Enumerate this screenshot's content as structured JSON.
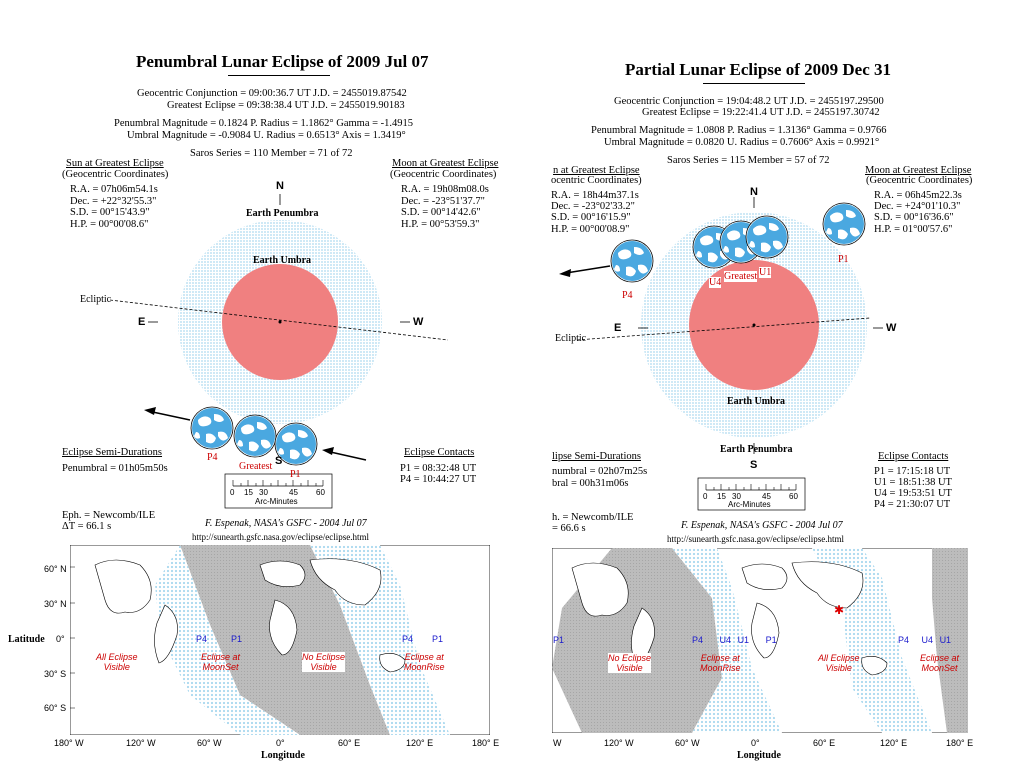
{
  "left": {
    "title": "Penumbral Lunar Eclipse of  2009 Jul 07",
    "conj_line": "Geocentric Conjunction =  09:00:36.7 UT        J.D. =  2455019.87542",
    "greatest_line": "Greatest Eclipse =  09:38:38.4 UT        J.D. =  2455019.90183",
    "mag_line1": "Penumbral Magnitude =  0.1824     P. Radius = 1.1862°       Gamma = -1.4915",
    "mag_line2": "Umbral Magnitude =  -0.9084     U. Radius = 0.6513°          Axis =  1.3419°",
    "saros": "Saros Series = 110          Member = 71 of 72",
    "sun_header": "Sun at Greatest Eclipse",
    "sun_sub": "(Geocentric Coordinates)",
    "sun_ra": "R.A. =  07h06m54.1s",
    "sun_dec": "Dec. = +22°32'55.3\"",
    "sun_sd": "S.D. = 00°15'43.9\"",
    "sun_hp": "H.P. = 00°00'08.6\"",
    "moon_header": "Moon at Greatest Eclipse",
    "moon_sub": "(Geocentric Coordinates)",
    "moon_ra": "R.A. =  19h08m08.0s",
    "moon_dec": "Dec. = -23°51'37.7\"",
    "moon_sd": "S.D. = 00°14'42.6\"",
    "moon_hp": "H.P. = 00°53'59.3\"",
    "n_label": "N",
    "s_label": "S",
    "e_label": "E",
    "w_label": "W",
    "penumbra_label": "Earth Penumbra",
    "umbra_label": "Earth Umbra",
    "ecliptic_label": "Ecliptic",
    "p4_label": "P4",
    "greatest_label": "Greatest",
    "p1_label": "P1",
    "semi_header": "Eclipse Semi-Durations",
    "semi_pen": "Penumbral = 01h05m50s",
    "contacts_header": "Eclipse Contacts",
    "contact_p1": "P1 = 08:32:48 UT",
    "contact_p4": "P4 = 10:44:27 UT",
    "scale_ticks": [
      "0",
      "15",
      "30",
      "45",
      "60"
    ],
    "scale_label": "Arc-Minutes",
    "eph": "Eph. = Newcomb/ILE",
    "delta_t": "ΔT =     66.1 s",
    "credit": "F. Espenak, NASA's GSFC - 2004 Jul 07",
    "url": "http://sunearth.gsfc.nasa.gov/eclipse/eclipse.html",
    "map_label_all": [
      "All Eclipse",
      "Visible"
    ],
    "map_label_moonset": [
      "Eclipse at",
      "MoonSet"
    ],
    "map_label_none": [
      "No Eclipse",
      "Visible"
    ],
    "map_label_moonrise": [
      "Eclipse at",
      "MoonRise"
    ],
    "map_p1": "P1",
    "map_p4": "P4",
    "map_p4b": "P4",
    "map_p1b": "P1",
    "lat_axis_label": "Latitude",
    "lon_axis_label": "Longitude",
    "lat_ticks": [
      "60° N",
      "30° N",
      "0°",
      "30° S",
      "60° S"
    ],
    "lon_ticks": [
      "180° W",
      "120° W",
      "60° W",
      "0°",
      "60° E",
      "120° E",
      "180° E"
    ]
  },
  "right": {
    "title": "Partial Lunar Eclipse of  2009 Dec 31",
    "conj_line": "Geocentric Conjunction =  19:04:48.2 UT        J.D. =  2455197.29500",
    "greatest_line": "Greatest Eclipse =  19:22:41.4 UT        J.D. =  2455197.30742",
    "mag_line1": "Penumbral Magnitude =  1.0808       P. Radius = 1.3136°       Gamma =  0.9766",
    "mag_line2": "Umbral Magnitude =  0.0820        U. Radius = 0.7606°          Axis =  0.9921°",
    "saros": "Saros Series = 115          Member = 57 of 72",
    "sun_header": "n at Greatest Eclipse",
    "sun_sub": "ocentric Coordinates)",
    "sun_ra": "R.A. =  18h44m37.1s",
    "sun_dec": "Dec. = -23°02'33.2\"",
    "sun_sd": "S.D. = 00°16'15.9\"",
    "sun_hp": "H.P. = 00°00'08.9\"",
    "moon_header": "Moon at Greatest Eclipse",
    "moon_sub": "(Geocentric Coordinates)",
    "moon_ra": "R.A. =  06h45m22.3s",
    "moon_dec": "Dec. = +24°01'10.3\"",
    "moon_sd": "S.D. = 00°16'36.6\"",
    "moon_hp": "H.P. = 01°00'57.6\"",
    "n_label": "N",
    "s_label": "S",
    "e_label": "E",
    "w_label": "W",
    "penumbra_label": "Earth Penumbra",
    "umbra_label": "Earth Umbra",
    "ecliptic_label": "Ecliptic",
    "p4_label": "P4",
    "u4_label": "U4",
    "greatest_label": "Greatest",
    "u1_label": "U1",
    "p1_label": "P1",
    "semi_header": "lipse Semi-Durations",
    "semi_pen": "numbral = 02h07m25s",
    "semi_umb": "bral =     00h31m06s",
    "contacts_header": "Eclipse Contacts",
    "contact_p1": "P1 = 17:15:18 UT",
    "contact_u1": "U1 = 18:51:38 UT",
    "contact_u4": "U4 = 19:53:51 UT",
    "contact_p4": "P4 = 21:30:07 UT",
    "scale_ticks": [
      "0",
      "15",
      "30",
      "45",
      "60"
    ],
    "scale_label": "Arc-Minutes",
    "eph": "h. = Newcomb/ILE",
    "delta_t": "=     66.6 s",
    "credit": "F. Espenak, NASA's GSFC - 2004 Jul 07",
    "url": "http://sunearth.gsfc.nasa.gov/eclipse/eclipse.html",
    "map_label_none": [
      "No Eclipse",
      "Visible"
    ],
    "map_label_moonrise": [
      "Eclipse at",
      "MoonRise"
    ],
    "map_label_all": [
      "All Eclipse",
      "Visible"
    ],
    "map_label_moonset": [
      "Eclipse at",
      "MoonSet"
    ],
    "map_contacts_left": [
      "P4",
      "U4",
      "U1",
      "P1"
    ],
    "map_contacts_right": [
      "P4",
      "U4",
      "U1"
    ],
    "map_p1_edge": "P1",
    "lon_axis_label": "Longitude",
    "lon_ticks": [
      "W",
      "120° W",
      "60° W",
      "0°",
      "60° E",
      "120° E",
      "180° E"
    ]
  },
  "colors": {
    "umbra": "#f08080",
    "penumbra": "#dff2fa",
    "moon_blue": "#3a9fd8",
    "map_shadow": "#c0c0c0",
    "hatch": "#b8dff0",
    "label_red": "#cc0000",
    "contact_blue": "#1a1acc"
  }
}
